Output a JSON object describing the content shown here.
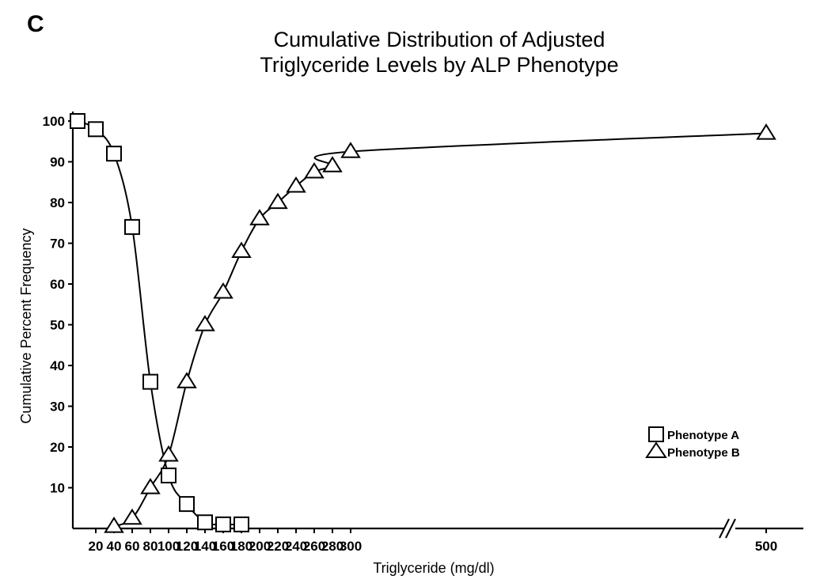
{
  "panel_label": "C",
  "chart_data": {
    "type": "line",
    "title_lines": [
      "Cumulative Distribution of Adjusted",
      "Triglyceride  Levels  by ALP  Phenotype"
    ],
    "xlabel": "Triglyceride  (mg/dl)",
    "ylabel": "Cumulative  Percent  Frequency",
    "ylim": [
      0,
      100
    ],
    "x_ticks": [
      20,
      40,
      60,
      80,
      100,
      120,
      140,
      160,
      180,
      200,
      220,
      240,
      260,
      280,
      300,
      500
    ],
    "y_ticks": [
      10,
      20,
      30,
      40,
      50,
      60,
      70,
      80,
      90,
      100
    ],
    "axis_break_after": 300,
    "legend_position": "right",
    "series": [
      {
        "name": "Phenotype  A",
        "marker": "square",
        "x": [
          0,
          20,
          40,
          60,
          80,
          100,
          120,
          140,
          160,
          180
        ],
        "values": [
          100,
          98,
          92,
          74,
          36,
          13,
          6,
          1.5,
          1,
          1
        ]
      },
      {
        "name": "Phenotype  B",
        "marker": "triangle",
        "x": [
          40,
          60,
          80,
          100,
          120,
          140,
          160,
          180,
          200,
          220,
          240,
          260,
          280,
          300,
          500
        ],
        "values": [
          0.5,
          2.5,
          10,
          18,
          36,
          50,
          58,
          68,
          76,
          80,
          84,
          87.5,
          89,
          92.5,
          97
        ]
      }
    ]
  }
}
